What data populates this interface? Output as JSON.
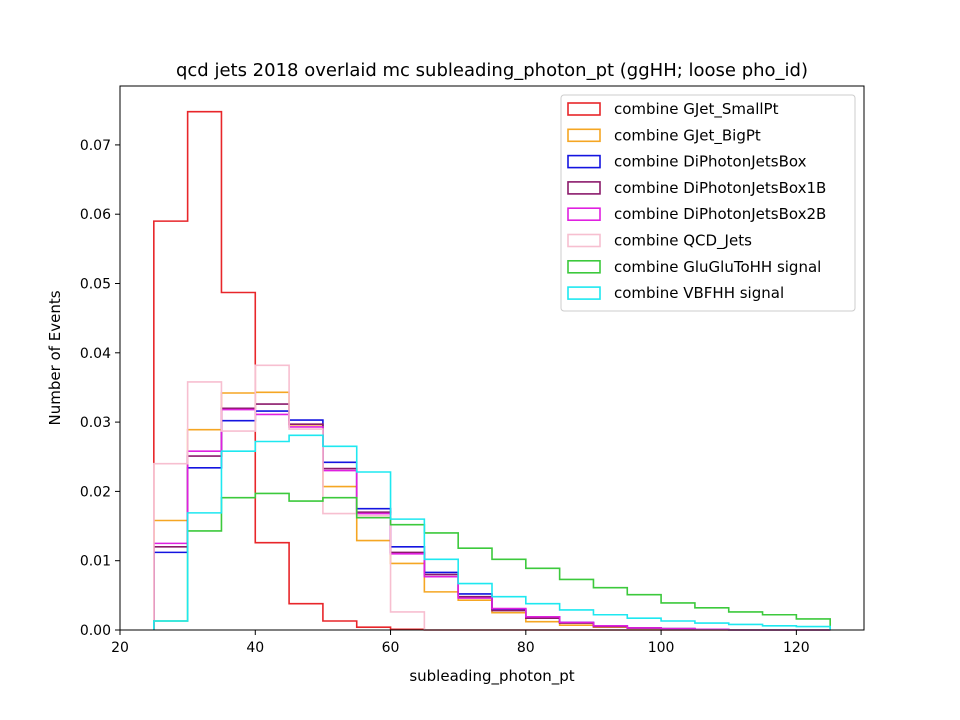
{
  "chart_data": {
    "type": "histogram",
    "title": "qcd jets 2018 overlaid mc subleading_photon_pt (ggHH; loose pho_id)",
    "xlabel": "subleading_photon_pt",
    "ylabel": "Number of Events",
    "xlim": [
      20,
      130
    ],
    "ylim": [
      0,
      0.0785
    ],
    "xticks": [
      20,
      40,
      60,
      80,
      100,
      120
    ],
    "xtick_labels": [
      "20",
      "40",
      "60",
      "80",
      "100",
      "120"
    ],
    "yticks": [
      0,
      0.01,
      0.02,
      0.03,
      0.04,
      0.05,
      0.06,
      0.07
    ],
    "ytick_labels": [
      "0.00",
      "0.01",
      "0.02",
      "0.03",
      "0.04",
      "0.05",
      "0.06",
      "0.07"
    ],
    "bin_edges": [
      25,
      30,
      35,
      40,
      45,
      50,
      55,
      60,
      65,
      70,
      75,
      80,
      85,
      90,
      95,
      100,
      105,
      110,
      115,
      120,
      125
    ],
    "legend_position": "top-right",
    "grid": false,
    "series": [
      {
        "name": "combine GJet_SmallPt",
        "color": "#e8262a",
        "values": [
          0.059,
          0.0748,
          0.0487,
          0.0126,
          0.0038,
          0.0013,
          0.0004,
          0.0001,
          0,
          0,
          0,
          0,
          0,
          0,
          0,
          0,
          0,
          0,
          0,
          0
        ]
      },
      {
        "name": "combine GJet_BigPt",
        "color": "#f5a623",
        "values": [
          0.0158,
          0.0289,
          0.0342,
          0.0343,
          0.0296,
          0.0207,
          0.0129,
          0.0096,
          0.0055,
          0.0043,
          0.0025,
          0.0012,
          0.0007,
          0.0004,
          0.0002,
          0.0001,
          0.0001,
          0,
          0,
          0
        ]
      },
      {
        "name": "combine DiPhotonJetsBox",
        "color": "#1414e0",
        "values": [
          0.0112,
          0.0234,
          0.0302,
          0.0316,
          0.0303,
          0.0242,
          0.0175,
          0.012,
          0.0083,
          0.0052,
          0.003,
          0.0019,
          0.0011,
          0.0006,
          0.0003,
          0.0002,
          0.0001,
          0,
          0,
          0
        ]
      },
      {
        "name": "combine DiPhotonJetsBox1B",
        "color": "#8b1a6b",
        "values": [
          0.012,
          0.0251,
          0.032,
          0.0326,
          0.0297,
          0.0233,
          0.017,
          0.0112,
          0.008,
          0.0048,
          0.0028,
          0.0017,
          0.001,
          0.0005,
          0.0003,
          0.0002,
          0.0001,
          0,
          0,
          0
        ]
      },
      {
        "name": "combine DiPhotonJetsBox2B",
        "color": "#e020e0",
        "values": [
          0.0125,
          0.0258,
          0.0318,
          0.0311,
          0.0293,
          0.023,
          0.0168,
          0.011,
          0.0077,
          0.0046,
          0.0031,
          0.0019,
          0.0011,
          0.0006,
          0.0003,
          0.0002,
          0.0001,
          0,
          0,
          0
        ]
      },
      {
        "name": "combine QCD_Jets",
        "color": "#f7bfd0",
        "values": [
          0.024,
          0.0358,
          0.0287,
          0.0382,
          0.029,
          0.0168,
          0.0165,
          0.0026,
          0,
          0,
          0,
          0,
          0,
          0,
          0,
          0,
          0,
          0,
          0,
          0
        ]
      },
      {
        "name": "combine GluGluToHH signal",
        "color": "#3cc93c",
        "values": [
          0.0013,
          0.0143,
          0.0191,
          0.0197,
          0.0186,
          0.0191,
          0.0162,
          0.0152,
          0.014,
          0.0118,
          0.0102,
          0.0089,
          0.0073,
          0.0061,
          0.0051,
          0.0039,
          0.0032,
          0.0026,
          0.0022,
          0.0016
        ]
      },
      {
        "name": "combine VBFHH signal",
        "color": "#1ee8f0",
        "values": [
          0.0013,
          0.0169,
          0.0258,
          0.0272,
          0.0281,
          0.0265,
          0.0228,
          0.016,
          0.0102,
          0.0067,
          0.0048,
          0.0038,
          0.0029,
          0.0022,
          0.0017,
          0.0013,
          0.001,
          0.0008,
          0.0006,
          0.0005
        ]
      }
    ]
  }
}
